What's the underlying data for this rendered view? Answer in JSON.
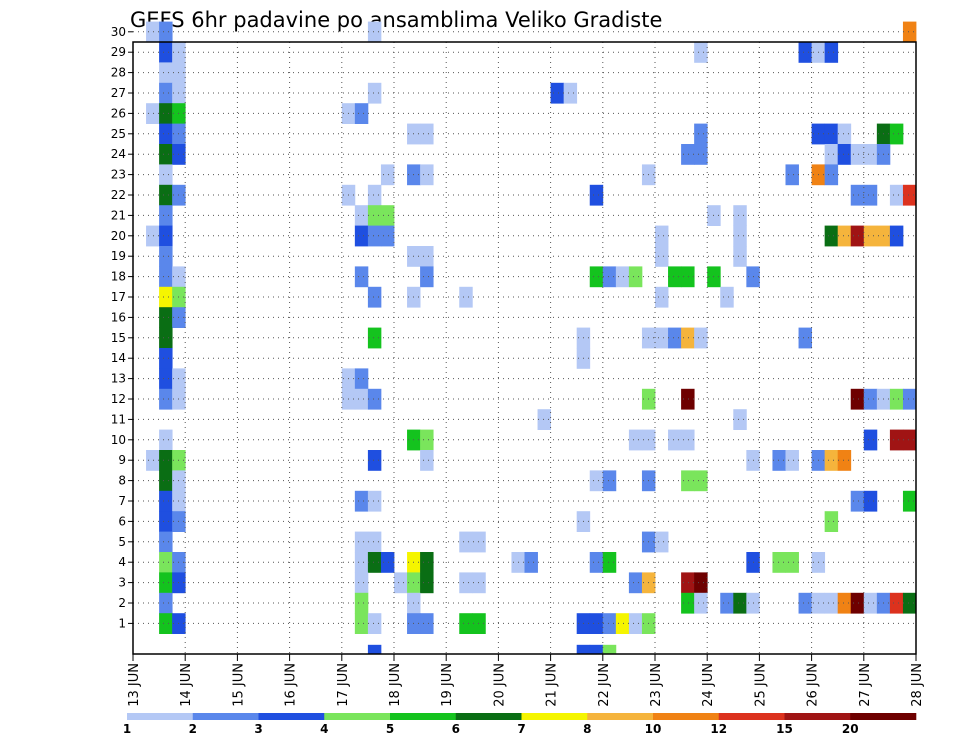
{
  "chart_data": {
    "type": "heatmap",
    "title": "GEFS 6hr padavine po ansamblima Veliko Gradiste",
    "y_categories": [
      "1",
      "2",
      "3",
      "4",
      "5",
      "6",
      "7",
      "8",
      "9",
      "10",
      "11",
      "12",
      "13",
      "14",
      "15",
      "16",
      "17",
      "18",
      "19",
      "20",
      "21",
      "22",
      "23",
      "24",
      "25",
      "26",
      "27",
      "28",
      "29",
      "30"
    ],
    "x_tick_labels": [
      "13 JUN",
      "14 JUN",
      "15 JUN",
      "16 JUN",
      "17 JUN",
      "18 JUN",
      "19 JUN",
      "20 JUN",
      "21 JUN",
      "22 JUN",
      "23 JUN",
      "24 JUN",
      "25 JUN",
      "26 JUN",
      "27 JUN",
      "28 JUN"
    ],
    "x_range": [
      0,
      15
    ],
    "time_step_hours": 6,
    "grid": "dotted",
    "colorbar": {
      "position": "bottom",
      "labels": [
        "1",
        "2",
        "3",
        "4",
        "5",
        "6",
        "7",
        "8",
        "10",
        "12",
        "15",
        "20"
      ],
      "colors": [
        "#b4c8f5",
        "#5a87eb",
        "#1f4fe0",
        "#7ae55c",
        "#14c31e",
        "#0a6e14",
        "#f5f500",
        "#f5b43c",
        "#f08214",
        "#dc321e",
        "#a01414",
        "#6e0000"
      ]
    },
    "cells": [
      [
        30,
        0.25,
        1
      ],
      [
        30,
        0.5,
        2
      ],
      [
        30,
        4.5,
        1
      ],
      [
        30,
        14.75,
        9
      ],
      [
        29,
        0.5,
        3
      ],
      [
        29,
        0.75,
        1
      ],
      [
        29,
        10.75,
        1
      ],
      [
        29,
        12.75,
        3
      ],
      [
        29,
        13,
        1
      ],
      [
        29,
        13.25,
        3
      ],
      [
        28,
        0.5,
        1
      ],
      [
        28,
        0.75,
        1
      ],
      [
        27,
        0.5,
        2
      ],
      [
        27,
        0.75,
        1
      ],
      [
        27,
        4.5,
        1
      ],
      [
        27,
        8,
        3
      ],
      [
        27,
        8.25,
        1
      ],
      [
        26,
        0.25,
        1
      ],
      [
        26,
        0.5,
        6
      ],
      [
        26,
        0.75,
        5
      ],
      [
        26,
        4,
        1
      ],
      [
        26,
        4.25,
        2
      ],
      [
        25,
        0.5,
        3
      ],
      [
        25,
        0.75,
        2
      ],
      [
        25,
        5.25,
        1
      ],
      [
        25,
        5.5,
        1
      ],
      [
        25,
        10.75,
        2
      ],
      [
        25,
        13,
        3
      ],
      [
        25,
        13.25,
        3
      ],
      [
        25,
        13.5,
        1
      ],
      [
        25,
        14.25,
        6
      ],
      [
        25,
        14.5,
        5
      ],
      [
        24,
        0.5,
        6
      ],
      [
        24,
        0.75,
        3
      ],
      [
        24,
        10.5,
        2
      ],
      [
        24,
        10.75,
        2
      ],
      [
        24,
        13.25,
        1
      ],
      [
        24,
        13.5,
        3
      ],
      [
        24,
        13.75,
        1
      ],
      [
        24,
        14,
        1
      ],
      [
        24,
        14.25,
        2
      ],
      [
        23,
        0.5,
        1
      ],
      [
        23,
        4.75,
        1
      ],
      [
        23,
        5.25,
        2
      ],
      [
        23,
        5.5,
        1
      ],
      [
        23,
        9.75,
        1
      ],
      [
        23,
        12.5,
        2
      ],
      [
        23,
        13,
        9
      ],
      [
        23,
        13.25,
        2
      ],
      [
        22,
        0.5,
        6
      ],
      [
        22,
        0.75,
        2
      ],
      [
        22,
        4,
        1
      ],
      [
        22,
        4.5,
        1
      ],
      [
        22,
        8.75,
        3
      ],
      [
        22,
        13.75,
        2
      ],
      [
        22,
        14,
        2
      ],
      [
        22,
        14.5,
        1
      ],
      [
        22,
        14.75,
        10
      ],
      [
        21,
        0.5,
        2
      ],
      [
        21,
        4.25,
        1
      ],
      [
        21,
        4.5,
        4
      ],
      [
        21,
        4.75,
        4
      ],
      [
        21,
        11,
        1
      ],
      [
        21,
        11.5,
        1
      ],
      [
        20,
        0.25,
        1
      ],
      [
        20,
        0.5,
        3
      ],
      [
        20,
        4.25,
        3
      ],
      [
        20,
        4.5,
        2
      ],
      [
        20,
        4.75,
        2
      ],
      [
        20,
        10,
        1
      ],
      [
        20,
        11.5,
        1
      ],
      [
        20,
        13.25,
        6
      ],
      [
        20,
        13.5,
        8
      ],
      [
        20,
        13.75,
        11
      ],
      [
        20,
        14,
        8
      ],
      [
        20,
        14.25,
        8
      ],
      [
        20,
        14.5,
        3
      ],
      [
        19,
        0.5,
        2
      ],
      [
        19,
        5.25,
        1
      ],
      [
        19,
        5.5,
        1
      ],
      [
        19,
        10,
        1
      ],
      [
        19,
        11.5,
        1
      ],
      [
        18,
        0.5,
        2
      ],
      [
        18,
        0.75,
        1
      ],
      [
        18,
        4.25,
        2
      ],
      [
        18,
        5.5,
        2
      ],
      [
        18,
        8.75,
        5
      ],
      [
        18,
        9,
        2
      ],
      [
        18,
        9.25,
        1
      ],
      [
        18,
        9.5,
        4
      ],
      [
        18,
        10.25,
        5
      ],
      [
        18,
        10.5,
        5
      ],
      [
        18,
        11,
        5
      ],
      [
        18,
        11.75,
        2
      ],
      [
        17,
        0.5,
        7
      ],
      [
        17,
        0.75,
        4
      ],
      [
        17,
        4.5,
        2
      ],
      [
        17,
        5.25,
        1
      ],
      [
        17,
        6.25,
        1
      ],
      [
        17,
        10,
        1
      ],
      [
        17,
        11.25,
        1
      ],
      [
        16,
        0.5,
        6
      ],
      [
        16,
        0.75,
        2
      ],
      [
        15,
        0.5,
        6
      ],
      [
        15,
        4.5,
        5
      ],
      [
        15,
        8.5,
        1
      ],
      [
        15,
        9.75,
        1
      ],
      [
        15,
        10,
        1
      ],
      [
        15,
        10.25,
        2
      ],
      [
        15,
        10.5,
        8
      ],
      [
        15,
        10.75,
        1
      ],
      [
        15,
        12.75,
        2
      ],
      [
        14,
        0.5,
        3
      ],
      [
        14,
        8.5,
        1
      ],
      [
        13,
        0.5,
        3
      ],
      [
        13,
        0.75,
        1
      ],
      [
        13,
        4,
        1
      ],
      [
        13,
        4.25,
        2
      ],
      [
        12,
        0.5,
        2
      ],
      [
        12,
        0.75,
        1
      ],
      [
        12,
        4,
        1
      ],
      [
        12,
        4.25,
        1
      ],
      [
        12,
        4.5,
        2
      ],
      [
        12,
        9.75,
        4
      ],
      [
        12,
        10.5,
        12
      ],
      [
        12,
        13.75,
        12
      ],
      [
        12,
        14,
        2
      ],
      [
        12,
        14.25,
        1
      ],
      [
        12,
        14.5,
        4
      ],
      [
        12,
        14.75,
        2
      ],
      [
        11,
        7.75,
        1
      ],
      [
        11,
        11.5,
        1
      ],
      [
        10,
        0.5,
        1
      ],
      [
        10,
        5.25,
        5
      ],
      [
        10,
        5.5,
        4
      ],
      [
        10,
        9.5,
        1
      ],
      [
        10,
        9.75,
        1
      ],
      [
        10,
        10.25,
        1
      ],
      [
        10,
        10.5,
        1
      ],
      [
        10,
        14,
        3
      ],
      [
        10,
        14.5,
        11
      ],
      [
        10,
        14.75,
        11
      ],
      [
        9,
        0.25,
        1
      ],
      [
        9,
        0.5,
        6
      ],
      [
        9,
        0.75,
        4
      ],
      [
        9,
        4.5,
        3
      ],
      [
        9,
        5.5,
        1
      ],
      [
        9,
        11.75,
        1
      ],
      [
        9,
        12.25,
        2
      ],
      [
        9,
        12.5,
        1
      ],
      [
        9,
        13,
        2
      ],
      [
        9,
        13.25,
        8
      ],
      [
        9,
        13.5,
        9
      ],
      [
        8,
        0.5,
        6
      ],
      [
        8,
        0.75,
        1
      ],
      [
        8,
        8.75,
        1
      ],
      [
        8,
        9,
        2
      ],
      [
        8,
        9.75,
        2
      ],
      [
        8,
        10.5,
        4
      ],
      [
        8,
        10.75,
        4
      ],
      [
        7,
        0.5,
        3
      ],
      [
        7,
        0.75,
        1
      ],
      [
        7,
        4.25,
        2
      ],
      [
        7,
        4.5,
        1
      ],
      [
        7,
        13.75,
        2
      ],
      [
        7,
        14,
        3
      ],
      [
        7,
        14.75,
        5
      ],
      [
        6,
        0.5,
        3
      ],
      [
        6,
        0.75,
        2
      ],
      [
        6,
        8.5,
        1
      ],
      [
        6,
        13.25,
        4
      ],
      [
        5,
        0.5,
        2
      ],
      [
        5,
        4.25,
        1
      ],
      [
        5,
        4.5,
        1
      ],
      [
        5,
        6.25,
        1
      ],
      [
        5,
        6.5,
        1
      ],
      [
        5,
        9.75,
        2
      ],
      [
        5,
        10,
        1
      ],
      [
        4,
        0.5,
        4
      ],
      [
        4,
        0.75,
        2
      ],
      [
        4,
        4.25,
        1
      ],
      [
        4,
        4.5,
        6
      ],
      [
        4,
        4.75,
        3
      ],
      [
        4,
        5.25,
        7
      ],
      [
        4,
        5.5,
        6
      ],
      [
        4,
        7.25,
        1
      ],
      [
        4,
        7.5,
        2
      ],
      [
        4,
        8.75,
        2
      ],
      [
        4,
        9,
        5
      ],
      [
        4,
        11.75,
        3
      ],
      [
        4,
        12.25,
        4
      ],
      [
        4,
        12.5,
        4
      ],
      [
        4,
        13,
        1
      ],
      [
        3,
        0.5,
        5
      ],
      [
        3,
        0.75,
        3
      ],
      [
        3,
        4.25,
        1
      ],
      [
        3,
        5,
        1
      ],
      [
        3,
        5.25,
        4
      ],
      [
        3,
        5.5,
        6
      ],
      [
        3,
        6.25,
        1
      ],
      [
        3,
        6.5,
        1
      ],
      [
        3,
        9.5,
        2
      ],
      [
        3,
        9.75,
        8
      ],
      [
        3,
        10.5,
        11
      ],
      [
        3,
        10.75,
        12
      ],
      [
        2,
        0.5,
        2
      ],
      [
        2,
        4.25,
        4
      ],
      [
        2,
        5.25,
        1
      ],
      [
        2,
        10.5,
        5
      ],
      [
        2,
        10.75,
        1
      ],
      [
        2,
        11.25,
        2
      ],
      [
        2,
        11.5,
        6
      ],
      [
        2,
        11.75,
        1
      ],
      [
        2,
        12.75,
        2
      ],
      [
        2,
        13,
        1
      ],
      [
        2,
        13.25,
        1
      ],
      [
        2,
        13.5,
        9
      ],
      [
        2,
        13.75,
        12
      ],
      [
        2,
        14,
        1
      ],
      [
        2,
        14.25,
        2
      ],
      [
        2,
        14.5,
        10
      ],
      [
        2,
        14.75,
        6
      ],
      [
        1,
        0.5,
        5
      ],
      [
        1,
        0.75,
        3
      ],
      [
        1,
        4.25,
        4
      ],
      [
        1,
        4.5,
        1
      ],
      [
        1,
        5.25,
        2
      ],
      [
        1,
        5.5,
        2
      ],
      [
        1,
        6.25,
        5
      ],
      [
        1,
        6.5,
        5
      ],
      [
        1,
        8.5,
        3
      ],
      [
        1,
        8.75,
        3
      ],
      [
        1,
        9,
        2
      ],
      [
        1,
        9.25,
        7
      ],
      [
        1,
        9.5,
        1
      ],
      [
        1,
        9.75,
        4
      ],
      [
        0,
        4.5,
        3
      ],
      [
        0,
        8.5,
        3
      ],
      [
        0,
        8.75,
        3
      ],
      [
        0,
        9,
        4
      ]
    ]
  }
}
